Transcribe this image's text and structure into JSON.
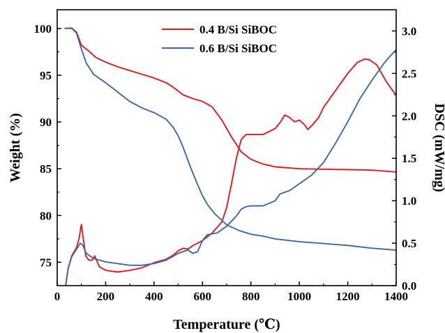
{
  "chart_data": {
    "type": "line",
    "title": "",
    "xlabel": "Temperature (℃)",
    "ylabel_left": "Weight (%)",
    "ylabel_right": "DSC (mW/mg)",
    "xlim": [
      0,
      1400
    ],
    "ylim_left": [
      72.5,
      102
    ],
    "ylim_right": [
      0.0,
      3.25
    ],
    "x_ticks": [
      0,
      200,
      400,
      600,
      800,
      1000,
      1200,
      1400
    ],
    "y_left_ticks": [
      75,
      80,
      85,
      90,
      95,
      100
    ],
    "y_right_ticks": [
      "0.0",
      "0.5",
      "1.0",
      "1.5",
      "2.0",
      "2.5",
      "3.0"
    ],
    "grid": false,
    "legend_position": "top-center",
    "series": [
      {
        "name": "0.4 B/Si SiBOC",
        "color": "#e8151b",
        "curves": [
          {
            "axis": "left",
            "points": [
              [
                30,
                100
              ],
              [
                60,
                100.05
              ],
              [
                80,
                99.6
              ],
              [
                100,
                98.2
              ],
              [
                130,
                97.6
              ],
              [
                160,
                96.9
              ],
              [
                200,
                96.4
              ],
              [
                250,
                95.9
              ],
              [
                300,
                95.5
              ],
              [
                350,
                95.1
              ],
              [
                400,
                94.7
              ],
              [
                450,
                94.2
              ],
              [
                480,
                93.7
              ],
              [
                520,
                92.9
              ],
              [
                560,
                92.5
              ],
              [
                600,
                92.2
              ],
              [
                640,
                91.6
              ],
              [
                680,
                90.2
              ],
              [
                720,
                88.4
              ],
              [
                760,
                86.8
              ],
              [
                800,
                86.0
              ],
              [
                850,
                85.5
              ],
              [
                900,
                85.2
              ],
              [
                1000,
                85.0
              ],
              [
                1100,
                84.95
              ],
              [
                1200,
                84.9
              ],
              [
                1300,
                84.85
              ],
              [
                1400,
                84.65
              ]
            ]
          },
          {
            "axis": "right",
            "points": [
              [
                35,
                0.0
              ],
              [
                45,
                0.2
              ],
              [
                60,
                0.35
              ],
              [
                80,
                0.45
              ],
              [
                90,
                0.55
              ],
              [
                100,
                0.72
              ],
              [
                108,
                0.55
              ],
              [
                118,
                0.35
              ],
              [
                130,
                0.3
              ],
              [
                145,
                0.3
              ],
              [
                155,
                0.35
              ],
              [
                162,
                0.3
              ],
              [
                175,
                0.22
              ],
              [
                200,
                0.18
              ],
              [
                250,
                0.16
              ],
              [
                300,
                0.18
              ],
              [
                350,
                0.21
              ],
              [
                400,
                0.27
              ],
              [
                450,
                0.31
              ],
              [
                480,
                0.36
              ],
              [
                500,
                0.41
              ],
              [
                520,
                0.44
              ],
              [
                540,
                0.43
              ],
              [
                560,
                0.47
              ],
              [
                600,
                0.53
              ],
              [
                640,
                0.62
              ],
              [
                680,
                0.75
              ],
              [
                700,
                0.92
              ],
              [
                720,
                1.2
              ],
              [
                740,
                1.5
              ],
              [
                760,
                1.72
              ],
              [
                780,
                1.78
              ],
              [
                800,
                1.78
              ],
              [
                850,
                1.78
              ],
              [
                900,
                1.85
              ],
              [
                920,
                1.92
              ],
              [
                940,
                2.01
              ],
              [
                960,
                1.98
              ],
              [
                980,
                1.93
              ],
              [
                1000,
                1.95
              ],
              [
                1020,
                1.9
              ],
              [
                1035,
                1.84
              ],
              [
                1050,
                1.88
              ],
              [
                1080,
                1.98
              ],
              [
                1100,
                2.1
              ],
              [
                1150,
                2.3
              ],
              [
                1200,
                2.5
              ],
              [
                1240,
                2.63
              ],
              [
                1270,
                2.67
              ],
              [
                1290,
                2.66
              ],
              [
                1320,
                2.6
              ],
              [
                1360,
                2.4
              ],
              [
                1400,
                2.24
              ]
            ]
          }
        ]
      },
      {
        "name": "0.6 B/Si SiBOC",
        "color": "#3b68a8",
        "curves": [
          {
            "axis": "left",
            "points": [
              [
                30,
                100
              ],
              [
                60,
                100
              ],
              [
                80,
                99.5
              ],
              [
                100,
                97.8
              ],
              [
                120,
                96.3
              ],
              [
                150,
                95.1
              ],
              [
                200,
                94.2
              ],
              [
                250,
                93.2
              ],
              [
                300,
                92.2
              ],
              [
                350,
                91.5
              ],
              [
                400,
                91.0
              ],
              [
                450,
                90.3
              ],
              [
                480,
                89.4
              ],
              [
                500,
                88.5
              ],
              [
                520,
                87.3
              ],
              [
                550,
                85.2
              ],
              [
                580,
                83.3
              ],
              [
                600,
                82.1
              ],
              [
                620,
                81.2
              ],
              [
                650,
                80.2
              ],
              [
                700,
                79.0
              ],
              [
                750,
                78.4
              ],
              [
                800,
                78.0
              ],
              [
                850,
                77.8
              ],
              [
                900,
                77.5
              ],
              [
                1000,
                77.2
              ],
              [
                1100,
                77.0
              ],
              [
                1200,
                76.8
              ],
              [
                1300,
                76.5
              ],
              [
                1400,
                76.3
              ]
            ]
          },
          {
            "axis": "right",
            "points": [
              [
                35,
                0.0
              ],
              [
                45,
                0.2
              ],
              [
                60,
                0.34
              ],
              [
                80,
                0.43
              ],
              [
                95,
                0.5
              ],
              [
                105,
                0.48
              ],
              [
                120,
                0.38
              ],
              [
                150,
                0.32
              ],
              [
                200,
                0.28
              ],
              [
                250,
                0.26
              ],
              [
                300,
                0.24
              ],
              [
                350,
                0.24
              ],
              [
                400,
                0.26
              ],
              [
                450,
                0.3
              ],
              [
                500,
                0.38
              ],
              [
                540,
                0.42
              ],
              [
                560,
                0.38
              ],
              [
                580,
                0.4
              ],
              [
                600,
                0.53
              ],
              [
                620,
                0.6
              ],
              [
                660,
                0.62
              ],
              [
                700,
                0.7
              ],
              [
                740,
                0.82
              ],
              [
                760,
                0.9
              ],
              [
                780,
                0.93
              ],
              [
                800,
                0.94
              ],
              [
                850,
                0.94
              ],
              [
                900,
                1.0
              ],
              [
                920,
                1.08
              ],
              [
                960,
                1.12
              ],
              [
                1000,
                1.2
              ],
              [
                1050,
                1.3
              ],
              [
                1100,
                1.45
              ],
              [
                1150,
                1.68
              ],
              [
                1200,
                1.93
              ],
              [
                1250,
                2.2
              ],
              [
                1300,
                2.42
              ],
              [
                1350,
                2.62
              ],
              [
                1380,
                2.72
              ],
              [
                1400,
                2.78
              ]
            ]
          }
        ]
      }
    ]
  }
}
